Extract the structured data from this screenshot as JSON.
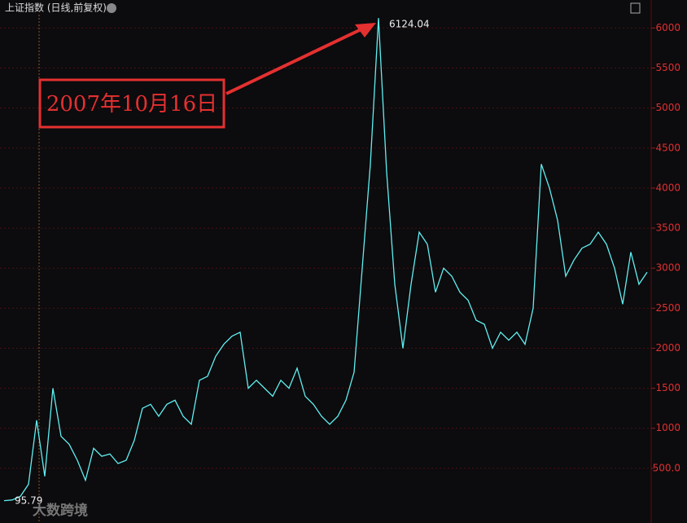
{
  "chart_data": {
    "type": "line",
    "title": "上证指数 (日线,前复权)",
    "color": "#5ff0f0",
    "values": [
      96,
      105,
      150,
      300,
      1100,
      400,
      1500,
      900,
      800,
      600,
      350,
      750,
      650,
      680,
      560,
      600,
      850,
      1250,
      1300,
      1150,
      1300,
      1350,
      1150,
      1050,
      1600,
      1650,
      1900,
      2050,
      2150,
      2200,
      1500,
      1600,
      1500,
      1400,
      1600,
      1500,
      1750,
      1400,
      1300,
      1150,
      1050,
      1150,
      1350,
      1700,
      3000,
      4300,
      6124,
      4200,
      2800,
      2000,
      2800,
      3450,
      3300,
      2700,
      3000,
      2900,
      2700,
      2600,
      2350,
      2300,
      2000,
      2200,
      2100,
      2200,
      2050,
      2500,
      4300,
      4000,
      3600,
      2900,
      3100,
      3250,
      3300,
      3450,
      3300,
      3000,
      2550,
      3200,
      2800,
      2950
    ],
    "ylim": [
      0,
      6350
    ],
    "yticks": [
      {
        "value": 500,
        "label": "500.0"
      },
      1000,
      1500,
      2000,
      2500,
      3000,
      3500,
      4000,
      4500,
      5000,
      5500,
      6000
    ],
    "grid": true,
    "annotations": {
      "high": "6124.04",
      "low": "95.79",
      "date": "2007年10月16日"
    },
    "watermark": "大数跨境"
  }
}
